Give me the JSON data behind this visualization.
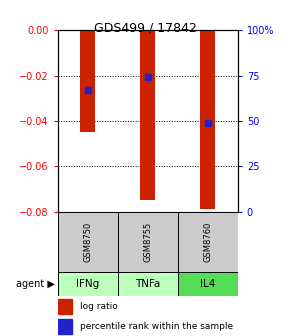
{
  "title": "GDS499 / 17842",
  "samples": [
    "GSM8750",
    "GSM8755",
    "GSM8760"
  ],
  "agents": [
    "IFNg",
    "TNFa",
    "IL4"
  ],
  "log_ratios": [
    -0.045,
    -0.075,
    -0.079
  ],
  "percentile_ranks": [
    67,
    74,
    49
  ],
  "ylim_left": [
    -0.08,
    0.0
  ],
  "yticks_left": [
    -0.08,
    -0.06,
    -0.04,
    -0.02,
    0.0
  ],
  "ylim_right": [
    0,
    100
  ],
  "yticks_right": [
    0,
    25,
    50,
    75,
    100
  ],
  "bar_color": "#cc2200",
  "marker_color": "#2222cc",
  "agent_colors": [
    "#bbffbb",
    "#bbffbb",
    "#55dd55"
  ],
  "sample_bg": "#cccccc",
  "legend_labels": [
    "log ratio",
    "percentile rank within the sample"
  ],
  "bar_width": 0.25
}
